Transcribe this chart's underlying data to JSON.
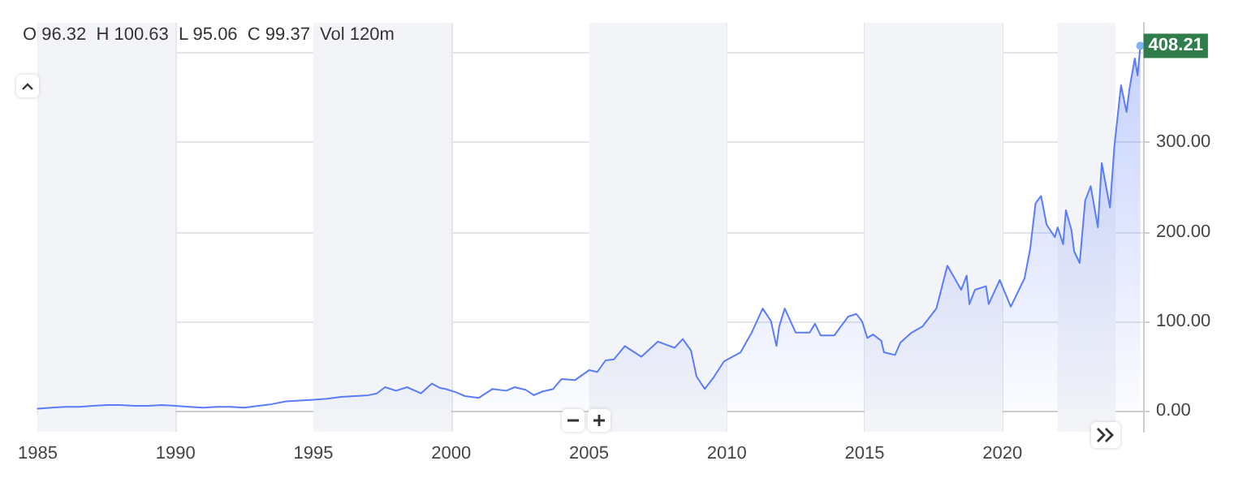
{
  "chart_data": {
    "type": "area",
    "x": [
      1985.0,
      1985.5,
      1986.0,
      1986.5,
      1987.0,
      1987.5,
      1988.0,
      1988.5,
      1989.0,
      1989.5,
      1990.0,
      1990.5,
      1991.0,
      1991.5,
      1992.0,
      1992.5,
      1993.0,
      1993.5,
      1994.0,
      1994.5,
      1995.0,
      1995.5,
      1996.0,
      1996.5,
      1997.0,
      1997.3,
      1997.6,
      1998.0,
      1998.4,
      1998.9,
      1999.3,
      1999.6,
      1999.8,
      2000.2,
      2000.5,
      2001.0,
      2001.5,
      2002.0,
      2002.3,
      2002.7,
      2003.0,
      2003.3,
      2003.7,
      2004.0,
      2004.5,
      2005.0,
      2005.3,
      2005.6,
      2005.9,
      2006.3,
      2006.9,
      2007.5,
      2008.1,
      2008.4,
      2008.7,
      2008.9,
      2009.2,
      2009.5,
      2009.9,
      2010.5,
      2010.9,
      2011.3,
      2011.6,
      2011.8,
      2011.9,
      2012.1,
      2012.5,
      2013.0,
      2013.2,
      2013.4,
      2013.9,
      2014.4,
      2014.7,
      2014.9,
      2015.1,
      2015.3,
      2015.6,
      2015.7,
      2016.1,
      2016.3,
      2016.7,
      2017.1,
      2017.6,
      2018.0,
      2018.3,
      2018.5,
      2018.7,
      2018.8,
      2019.0,
      2019.4,
      2019.5,
      2019.9,
      2020.3,
      2020.8,
      2021.0,
      2021.2,
      2021.4,
      2021.6,
      2021.9,
      2022.0,
      2022.2,
      2022.3,
      2022.5,
      2022.6,
      2022.8,
      2023.0,
      2023.2,
      2023.46,
      2023.6,
      2023.9,
      2024.06,
      2024.3,
      2024.5,
      2024.6,
      2024.8,
      2024.9,
      2025.0
    ],
    "series": [
      {
        "color": "#5b7cfa",
        "values": [
          2,
          3,
          4,
          4,
          5,
          6,
          6,
          5,
          5,
          6,
          5,
          4,
          3,
          4,
          4,
          3,
          5,
          7,
          10,
          11,
          12,
          13,
          15,
          16,
          17,
          19,
          26,
          22,
          26,
          19,
          30,
          25,
          24,
          20,
          16,
          14,
          24,
          22,
          26,
          23,
          17,
          21,
          24,
          35,
          34,
          45,
          43,
          56,
          57,
          72,
          60,
          77,
          70,
          80,
          67,
          38,
          24,
          36,
          55,
          65,
          87,
          114,
          100,
          72,
          94,
          114,
          87,
          87,
          97,
          84,
          84,
          105,
          108,
          100,
          81,
          85,
          78,
          65,
          62,
          76,
          87,
          94,
          114,
          162,
          146,
          135,
          151,
          119,
          135,
          139,
          119,
          146,
          116,
          148,
          180,
          232,
          240,
          208,
          194,
          205,
          186,
          224,
          202,
          178,
          165,
          235,
          251,
          205,
          277,
          227,
          296,
          364,
          334,
          359,
          394,
          375,
          408.21
        ]
      }
    ],
    "xlim": [
      1985,
      2025.1
    ],
    "xticks": [
      {
        "value": 1985,
        "label": "1985"
      },
      {
        "value": 1990,
        "label": "1990"
      },
      {
        "value": 1995,
        "label": "1995"
      },
      {
        "value": 2000,
        "label": "2000"
      },
      {
        "value": 2005,
        "label": "2005"
      },
      {
        "value": 2010,
        "label": "2010"
      },
      {
        "value": 2015,
        "label": "2015"
      },
      {
        "value": 2020,
        "label": "2020"
      }
    ],
    "ylim": [
      -24,
      434
    ],
    "yticks": [
      {
        "value": 0,
        "label": "0.00"
      },
      {
        "value": 100,
        "label": "100.00"
      },
      {
        "value": 200,
        "label": "200.00"
      },
      {
        "value": 300,
        "label": "300.00"
      },
      {
        "value": 400,
        "label": null
      }
    ],
    "grid": true,
    "marker": "none",
    "line_style": "solid",
    "bands": [
      {
        "axis": "x",
        "from": 1985,
        "to": 1990,
        "color": "#f3f4f8"
      },
      {
        "axis": "x",
        "from": 1995,
        "to": 2000,
        "color": "#f3f4f8"
      },
      {
        "axis": "x",
        "from": 2005,
        "to": 2010,
        "color": "#f3f4f8"
      },
      {
        "axis": "x",
        "from": 2015,
        "to": 2020,
        "color": "#f3f4f8"
      },
      {
        "axis": "x",
        "from": 2022,
        "to": 2024.1,
        "color": "#f3f4f8"
      }
    ],
    "annotations": [
      "O 96.32  H 100.63  L 95.06  C 99.37  Vol 120m",
      {
        "text": "408.21",
        "x": 2025.0,
        "y": 408.21
      }
    ]
  }
}
